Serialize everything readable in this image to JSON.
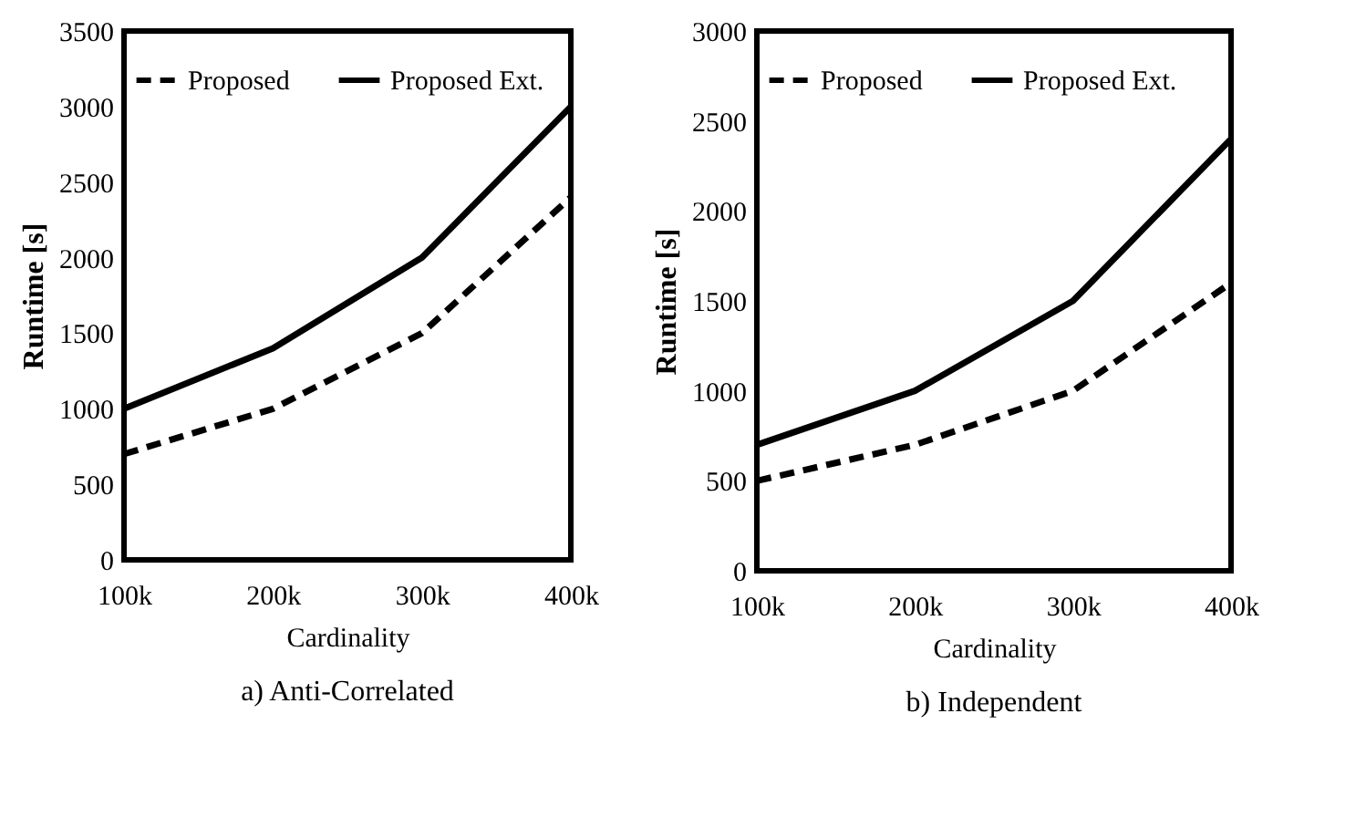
{
  "chart_data": [
    {
      "type": "line",
      "categories": [
        "100k",
        "200k",
        "300k",
        "400k"
      ],
      "xlabel": "Cardinality",
      "ylabel": "Runtime [s]",
      "ylim": [
        0,
        3500
      ],
      "yticks": [
        0,
        500,
        1000,
        1500,
        2000,
        2500,
        3000,
        3500
      ],
      "grid": false,
      "legend": "top",
      "annotations": [
        "a) Anti-Correlated"
      ],
      "series": [
        {
          "name": "Proposed",
          "color": "#000000",
          "line_style": "dashed",
          "values": [
            700,
            1000,
            1500,
            2400
          ]
        },
        {
          "name": "Proposed Ext.",
          "color": "#000000",
          "line_style": "solid",
          "values": [
            1000,
            1400,
            2000,
            3000
          ]
        }
      ]
    },
    {
      "type": "line",
      "categories": [
        "100k",
        "200k",
        "300k",
        "400k"
      ],
      "xlabel": "Cardinality",
      "ylabel": "Runtime [s]",
      "ylim": [
        0,
        3000
      ],
      "yticks": [
        0,
        500,
        1000,
        1500,
        2000,
        2500,
        3000
      ],
      "grid": false,
      "legend": "top",
      "annotations": [
        "b) Independent"
      ],
      "series": [
        {
          "name": "Proposed",
          "color": "#000000",
          "line_style": "dashed",
          "values": [
            500,
            700,
            1000,
            1600
          ]
        },
        {
          "name": "Proposed Ext.",
          "color": "#000000",
          "line_style": "solid",
          "values": [
            700,
            1000,
            1500,
            2400
          ]
        }
      ]
    }
  ]
}
